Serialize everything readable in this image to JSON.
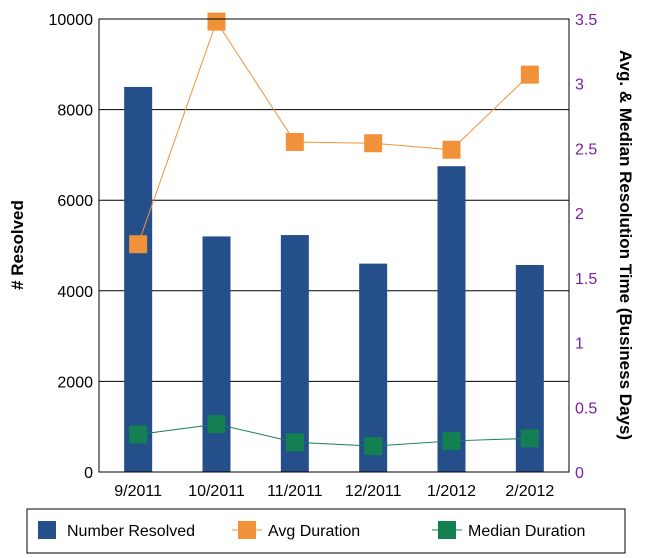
{
  "chart_data": {
    "type": "bar",
    "categories": [
      "9/2011",
      "10/2011",
      "11/2011",
      "12/2011",
      "1/2012",
      "2/2012"
    ],
    "series": [
      {
        "name": "Number Resolved",
        "type": "bar",
        "axis": "left",
        "color": "#244f8a",
        "values": [
          8500,
          5200,
          5230,
          4600,
          6750,
          4570
        ]
      },
      {
        "name": "Avg Duration",
        "type": "line",
        "axis": "right",
        "color": "#f0923a",
        "marker": "square",
        "values": [
          1.76,
          3.48,
          2.55,
          2.54,
          2.49,
          3.07
        ]
      },
      {
        "name": "Median Duration",
        "type": "line",
        "axis": "right",
        "color": "#138052",
        "marker": "square",
        "values": [
          0.29,
          0.37,
          0.23,
          0.2,
          0.24,
          0.26
        ]
      }
    ],
    "ylabel_left": "# Resolved",
    "ylabel_right": "Avg. & Median Resolution Time (Business Days)",
    "ylim_left": [
      0,
      10000
    ],
    "ylim_right": [
      0,
      3.5
    ],
    "yticks_left": [
      "0",
      "2000",
      "4000",
      "6000",
      "8000",
      "10000"
    ],
    "yticks_right": [
      "0",
      "0.5",
      "1",
      "1.5",
      "2",
      "2.5",
      "3",
      "3.5"
    ],
    "grid": true,
    "legend": "bottom"
  }
}
